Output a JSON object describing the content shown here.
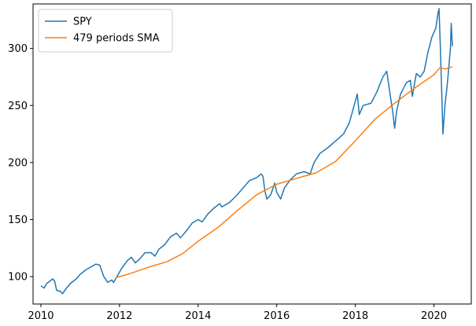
{
  "chart_data": {
    "type": "line",
    "title": "",
    "xlabel": "",
    "ylabel": "",
    "xlim": [
      2009.8,
      2020.95
    ],
    "ylim": [
      76,
      339
    ],
    "x_ticks": [
      {
        "value": 2010,
        "label": "2010"
      },
      {
        "value": 2012,
        "label": "2012"
      },
      {
        "value": 2014,
        "label": "2014"
      },
      {
        "value": 2016,
        "label": "2016"
      },
      {
        "value": 2018,
        "label": "2018"
      },
      {
        "value": 2020,
        "label": "2020"
      }
    ],
    "y_ticks": [
      {
        "value": 100,
        "label": "100"
      },
      {
        "value": 150,
        "label": "150"
      },
      {
        "value": 200,
        "label": "200"
      },
      {
        "value": 250,
        "label": "250"
      },
      {
        "value": 300,
        "label": "300"
      }
    ],
    "grid": false,
    "legend_position": "top-left",
    "series": [
      {
        "name": "SPY",
        "color": "#1f77b4",
        "points": [
          [
            2010.0,
            92
          ],
          [
            2010.08,
            90
          ],
          [
            2010.15,
            94
          ],
          [
            2010.3,
            98
          ],
          [
            2010.35,
            96
          ],
          [
            2010.4,
            88
          ],
          [
            2010.5,
            87
          ],
          [
            2010.55,
            85
          ],
          [
            2010.65,
            90
          ],
          [
            2010.75,
            94
          ],
          [
            2010.9,
            98
          ],
          [
            2011.0,
            102
          ],
          [
            2011.15,
            106
          ],
          [
            2011.3,
            109
          ],
          [
            2011.4,
            111
          ],
          [
            2011.5,
            110
          ],
          [
            2011.6,
            100
          ],
          [
            2011.7,
            95
          ],
          [
            2011.8,
            97
          ],
          [
            2011.85,
            95
          ],
          [
            2011.95,
            101
          ],
          [
            2012.05,
            107
          ],
          [
            2012.2,
            114
          ],
          [
            2012.3,
            117
          ],
          [
            2012.4,
            112
          ],
          [
            2012.5,
            115
          ],
          [
            2012.65,
            121
          ],
          [
            2012.8,
            121
          ],
          [
            2012.9,
            118
          ],
          [
            2013.0,
            124
          ],
          [
            2013.15,
            128
          ],
          [
            2013.3,
            135
          ],
          [
            2013.45,
            138
          ],
          [
            2013.55,
            134
          ],
          [
            2013.7,
            140
          ],
          [
            2013.85,
            147
          ],
          [
            2014.0,
            150
          ],
          [
            2014.1,
            148
          ],
          [
            2014.25,
            155
          ],
          [
            2014.4,
            160
          ],
          [
            2014.55,
            164
          ],
          [
            2014.6,
            161
          ],
          [
            2014.8,
            165
          ],
          [
            2015.0,
            172
          ],
          [
            2015.15,
            178
          ],
          [
            2015.3,
            184
          ],
          [
            2015.5,
            187
          ],
          [
            2015.6,
            190
          ],
          [
            2015.65,
            188
          ],
          [
            2015.7,
            175
          ],
          [
            2015.75,
            168
          ],
          [
            2015.85,
            172
          ],
          [
            2015.95,
            182
          ],
          [
            2016.0,
            174
          ],
          [
            2016.1,
            168
          ],
          [
            2016.2,
            178
          ],
          [
            2016.35,
            185
          ],
          [
            2016.5,
            190
          ],
          [
            2016.7,
            192
          ],
          [
            2016.85,
            190
          ],
          [
            2016.95,
            200
          ],
          [
            2017.1,
            208
          ],
          [
            2017.3,
            213
          ],
          [
            2017.5,
            219
          ],
          [
            2017.7,
            225
          ],
          [
            2017.85,
            235
          ],
          [
            2018.05,
            260
          ],
          [
            2018.1,
            242
          ],
          [
            2018.2,
            250
          ],
          [
            2018.4,
            252
          ],
          [
            2018.55,
            262
          ],
          [
            2018.7,
            275
          ],
          [
            2018.8,
            280
          ],
          [
            2018.9,
            256
          ],
          [
            2018.95,
            245
          ],
          [
            2019.0,
            230
          ],
          [
            2019.05,
            245
          ],
          [
            2019.15,
            260
          ],
          [
            2019.3,
            270
          ],
          [
            2019.4,
            272
          ],
          [
            2019.45,
            258
          ],
          [
            2019.55,
            278
          ],
          [
            2019.65,
            275
          ],
          [
            2019.75,
            280
          ],
          [
            2019.85,
            297
          ],
          [
            2019.95,
            310
          ],
          [
            2020.05,
            318
          ],
          [
            2020.1,
            330
          ],
          [
            2020.13,
            335
          ],
          [
            2020.16,
            305
          ],
          [
            2020.2,
            260
          ],
          [
            2020.23,
            225
          ],
          [
            2020.28,
            250
          ],
          [
            2020.33,
            265
          ],
          [
            2020.37,
            280
          ],
          [
            2020.42,
            300
          ],
          [
            2020.44,
            322
          ],
          [
            2020.47,
            302
          ]
        ]
      },
      {
        "name": "479 periods SMA",
        "color": "#ff7f0e",
        "points": [
          [
            2011.9,
            99
          ],
          [
            2012.3,
            103
          ],
          [
            2012.8,
            109
          ],
          [
            2013.2,
            113
          ],
          [
            2013.6,
            120
          ],
          [
            2014.0,
            131
          ],
          [
            2014.5,
            143
          ],
          [
            2015.0,
            158
          ],
          [
            2015.5,
            172
          ],
          [
            2016.0,
            181
          ],
          [
            2016.5,
            186
          ],
          [
            2017.0,
            191
          ],
          [
            2017.5,
            201
          ],
          [
            2018.0,
            219
          ],
          [
            2018.5,
            238
          ],
          [
            2019.0,
            252
          ],
          [
            2019.5,
            265
          ],
          [
            2020.0,
            277
          ],
          [
            2020.15,
            283
          ],
          [
            2020.3,
            282
          ],
          [
            2020.47,
            284
          ]
        ]
      }
    ]
  }
}
